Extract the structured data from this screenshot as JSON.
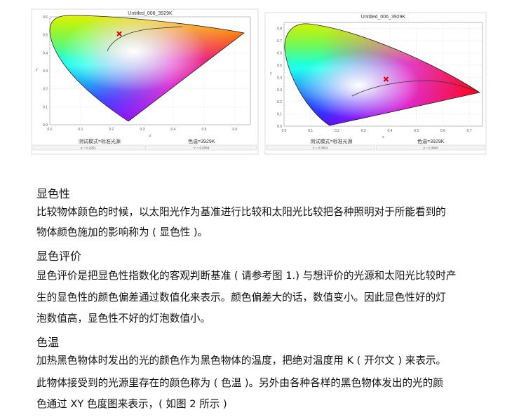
{
  "figures": [
    {
      "title": "Untitled_006_3929K",
      "xlabel": "u'",
      "ylabel": "v'",
      "xticks": [
        "0.0",
        "0.1",
        "0.2",
        "0.3",
        "0.4",
        "0.5",
        "0.6"
      ],
      "yticks": [
        "0.0",
        "0.1",
        "0.2",
        "0.3",
        "0.4",
        "0.5",
        "0.6"
      ],
      "mode": "测试模式=标准光源",
      "cct": "色温=3929K",
      "coord1": "u' = 0.2251",
      "coord2": "v' = 0.5059"
    },
    {
      "title": "Untitled_006_3929K",
      "xlabel": "x",
      "ylabel": "y",
      "xticks": [
        "0.0",
        "0.1",
        "0.2",
        "0.3",
        "0.4",
        "0.5",
        "0.6",
        "0.7"
      ],
      "yticks": [
        "0.0",
        "0.1",
        "0.2",
        "0.3",
        "0.4",
        "0.5",
        "0.6",
        "0.7",
        "0.8"
      ],
      "mode": "测试模式=标准光源",
      "cct": "色温=3929K",
      "coord1": "x = 0.3854",
      "coord2": "y = 0.3849"
    }
  ],
  "chart_data": [
    {
      "type": "scatter",
      "title": "Untitled_006_3929K",
      "xlabel": "u'",
      "ylabel": "v'",
      "xlim": [
        0,
        0.65
      ],
      "ylim": [
        0,
        0.6
      ],
      "grid": true,
      "points": [
        {
          "x": 0.2251,
          "y": 0.5059
        }
      ]
    },
    {
      "type": "scatter",
      "title": "Untitled_006_3929K",
      "xlabel": "x",
      "ylabel": "y",
      "xlim": [
        0,
        0.75
      ],
      "ylim": [
        0,
        0.85
      ],
      "grid": true,
      "points": [
        {
          "x": 0.3854,
          "y": 0.3849
        }
      ]
    }
  ],
  "sections": [
    {
      "heading": "显色性",
      "lines": [
        "比较物体颜色的时候，以太阳光作为基准进行比较和太阳光比较把各种照明对于所能看到的",
        "物体颜色施加的影响称为 ( 显色性 )。"
      ]
    },
    {
      "heading": "显色评价",
      "lines": [
        "显色评价是把显色性指数化的客观判断基准 ( 请参考图 1.) 与想评价的光源和太阳光比较时产",
        "生的显色性的颜色偏差通过数值化来表示。颜色偏差大的话，数值变小。因此显色性好的灯",
        "泡数值高，显色性不好的灯泡数值小。"
      ]
    },
    {
      "heading": "色温",
      "lines": [
        "加热黑色物体时发出的光的颜色作为黑色物体的温度，把绝对温度用 K ( 开尔文 ) 来表示。",
        "此物体接受到的光源里存在的颜色称为 ( 色温 )。另外由各种各样的黑色物体发出的光的颜",
        "色通过 XY 色度图来表示，( 如图 2 所示 )"
      ]
    }
  ]
}
